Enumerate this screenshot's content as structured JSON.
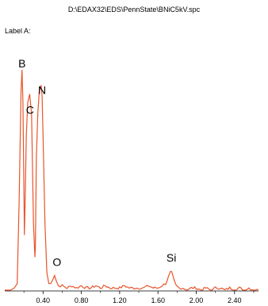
{
  "header": {
    "file_path": "D:\\EDAX32\\EDS\\PennState\\BNiC5kV.spc"
  },
  "label_a": "Label A:",
  "chart_data": {
    "type": "line",
    "title": "",
    "xlabel": "",
    "ylabel": "",
    "xlim": [
      0.0,
      2.65
    ],
    "ylim": [
      0,
      100
    ],
    "x_ticks": [
      "0.40",
      "0.80",
      "1.20",
      "1.60",
      "2.00",
      "2.40"
    ],
    "line_color": "#e8542a",
    "peaks": [
      {
        "element": "B",
        "energy": 0.18,
        "height": 100
      },
      {
        "element": "C",
        "energy": 0.28,
        "height": 89
      },
      {
        "element": "N",
        "energy": 0.39,
        "height": 93
      },
      {
        "element": "O",
        "energy": 0.52,
        "height": 7
      },
      {
        "element": "Si",
        "energy": 1.74,
        "height": 8
      }
    ],
    "series": [
      {
        "x": [
          0.0,
          0.06,
          0.1,
          0.13,
          0.15,
          0.17,
          0.18,
          0.19,
          0.205,
          0.215,
          0.225,
          0.24,
          0.26,
          0.28,
          0.3,
          0.315,
          0.32,
          0.33,
          0.345,
          0.36,
          0.38,
          0.39,
          0.4,
          0.42,
          0.44,
          0.46,
          0.48,
          0.5,
          0.52,
          0.54,
          0.56,
          0.6,
          0.65,
          0.7,
          0.75,
          0.8,
          0.85,
          0.9,
          0.95,
          1.0,
          1.05,
          1.1,
          1.15,
          1.2,
          1.25,
          1.3,
          1.35,
          1.4,
          1.45,
          1.5,
          1.55,
          1.6,
          1.64,
          1.68,
          1.71,
          1.73,
          1.74,
          1.75,
          1.77,
          1.79,
          1.82,
          1.86,
          1.9,
          1.95,
          2.0,
          2.05,
          2.1,
          2.15,
          2.2,
          2.25,
          2.3,
          2.35,
          2.4,
          2.45,
          2.5,
          2.55,
          2.6,
          2.65
        ],
        "y": [
          0,
          0,
          1,
          3,
          40,
          90,
          100,
          85,
          25,
          45,
          70,
          85,
          89,
          80,
          30,
          15,
          20,
          60,
          80,
          90,
          93,
          88,
          70,
          30,
          8,
          3,
          3,
          5,
          7,
          4,
          2,
          2,
          1,
          2,
          1,
          2,
          1,
          1,
          2,
          1,
          2,
          1,
          1,
          1,
          2,
          1,
          1,
          1,
          1,
          2,
          1,
          1,
          2,
          3,
          6,
          8,
          8,
          7,
          4,
          2,
          1,
          1,
          0,
          1,
          1,
          0,
          1,
          0,
          1,
          1,
          0,
          1,
          0,
          1,
          0,
          1,
          0,
          0
        ]
      }
    ]
  }
}
